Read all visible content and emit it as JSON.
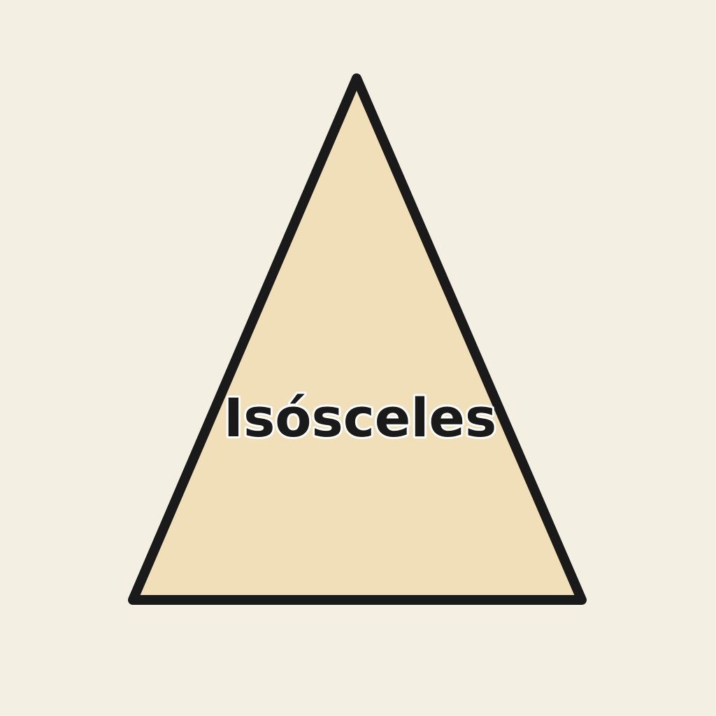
{
  "diagram": {
    "label": "Isósceles",
    "colors": {
      "background": "#f4efe3",
      "fill": "#f0dfb9",
      "stroke": "#1a1a1a"
    }
  }
}
